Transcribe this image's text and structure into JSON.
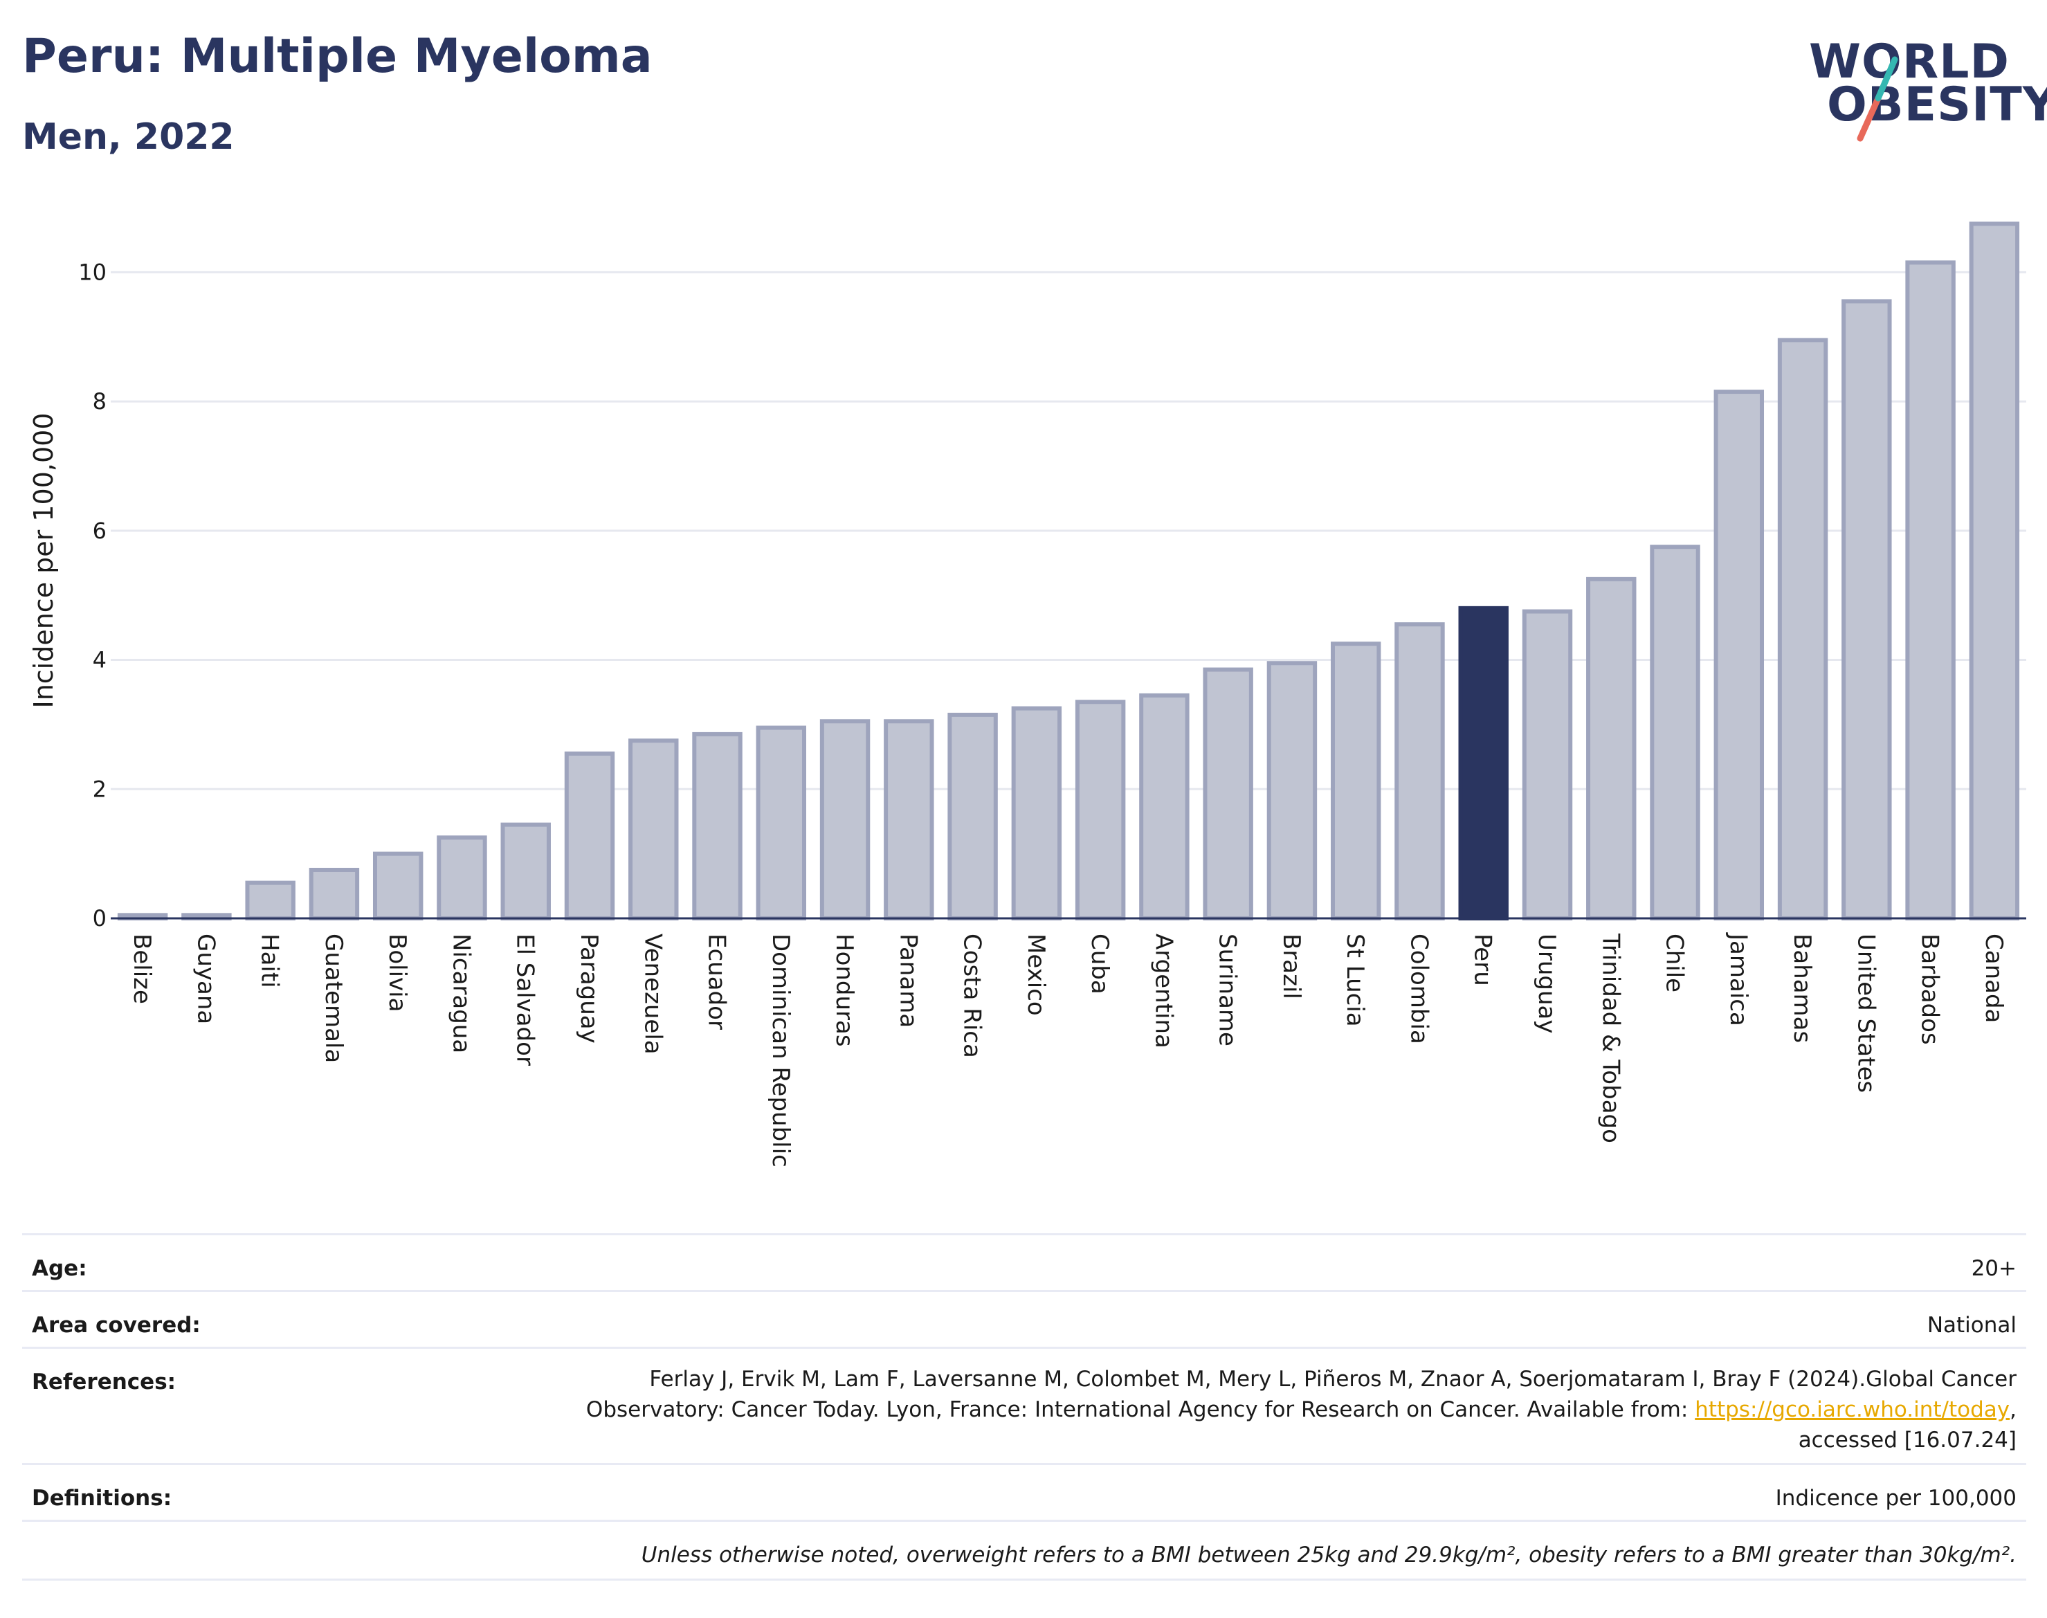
{
  "header": {
    "title": "Peru: Multiple Myeloma",
    "subtitle": "Men, 2022",
    "logo_line1": "WORLD",
    "logo_line2": "OBESITY"
  },
  "colors": {
    "highlight": "#2a3560",
    "bar_fill": "#c0c4d2",
    "bar_stroke": "#9ea4bd",
    "text_dark": "#2a3560",
    "logo_teal": "#35b7b1",
    "logo_red": "#e8695a",
    "link": "#e7a800"
  },
  "chart_data": {
    "type": "bar",
    "ylabel": "Incidence per 100,000",
    "ylim": [
      0,
      11
    ],
    "yticks": [
      0,
      2,
      4,
      6,
      8,
      10
    ],
    "grid": true,
    "highlight_category": "Peru",
    "categories": [
      "Belize",
      "Guyana",
      "Haiti",
      "Guatemala",
      "Bolivia",
      "Nicaragua",
      "El Salvador",
      "Paraguay",
      "Venezuela",
      "Ecuador",
      "Dominican Republic",
      "Honduras",
      "Panama",
      "Costa Rica",
      "Mexico",
      "Cuba",
      "Argentina",
      "Suriname",
      "Brazil",
      "St Lucia",
      "Colombia",
      "Peru",
      "Uruguay",
      "Trinidad & Tobago",
      "Chile",
      "Jamaica",
      "Bahamas",
      "United States",
      "Barbados",
      "Canada"
    ],
    "values": [
      0.05,
      0.05,
      0.55,
      0.75,
      1.0,
      1.25,
      1.45,
      2.55,
      2.75,
      2.85,
      2.95,
      3.05,
      3.05,
      3.15,
      3.25,
      3.35,
      3.45,
      3.85,
      3.95,
      4.25,
      4.55,
      4.8,
      4.75,
      5.25,
      5.75,
      8.15,
      8.95,
      9.55,
      10.15,
      10.75
    ]
  },
  "meta": {
    "age_label": "Age:",
    "age_value": "20+",
    "area_label": "Area covered:",
    "area_value": "National",
    "references_label": "References:",
    "references_line1": "Ferlay J, Ervik M, Lam F, Laversanne M, Colombet M, Mery L, Piñeros M, Znaor A, Soerjomataram I, Bray F (2024).Global Cancer",
    "references_line2": "Observatory: Cancer Today. Lyon, France: International Agency for Research on Cancer. Available from: ",
    "references_link": "https://gco.iarc.who.int/today",
    "references_line2_end": ",",
    "references_line3": "accessed [16.07.24]",
    "definitions_label": "Definitions:",
    "definitions_value": "Indicence per 100,000",
    "note": "Unless otherwise noted, overweight refers to a BMI between 25kg and 29.9kg/m², obesity refers to a BMI greater than 30kg/m²."
  }
}
